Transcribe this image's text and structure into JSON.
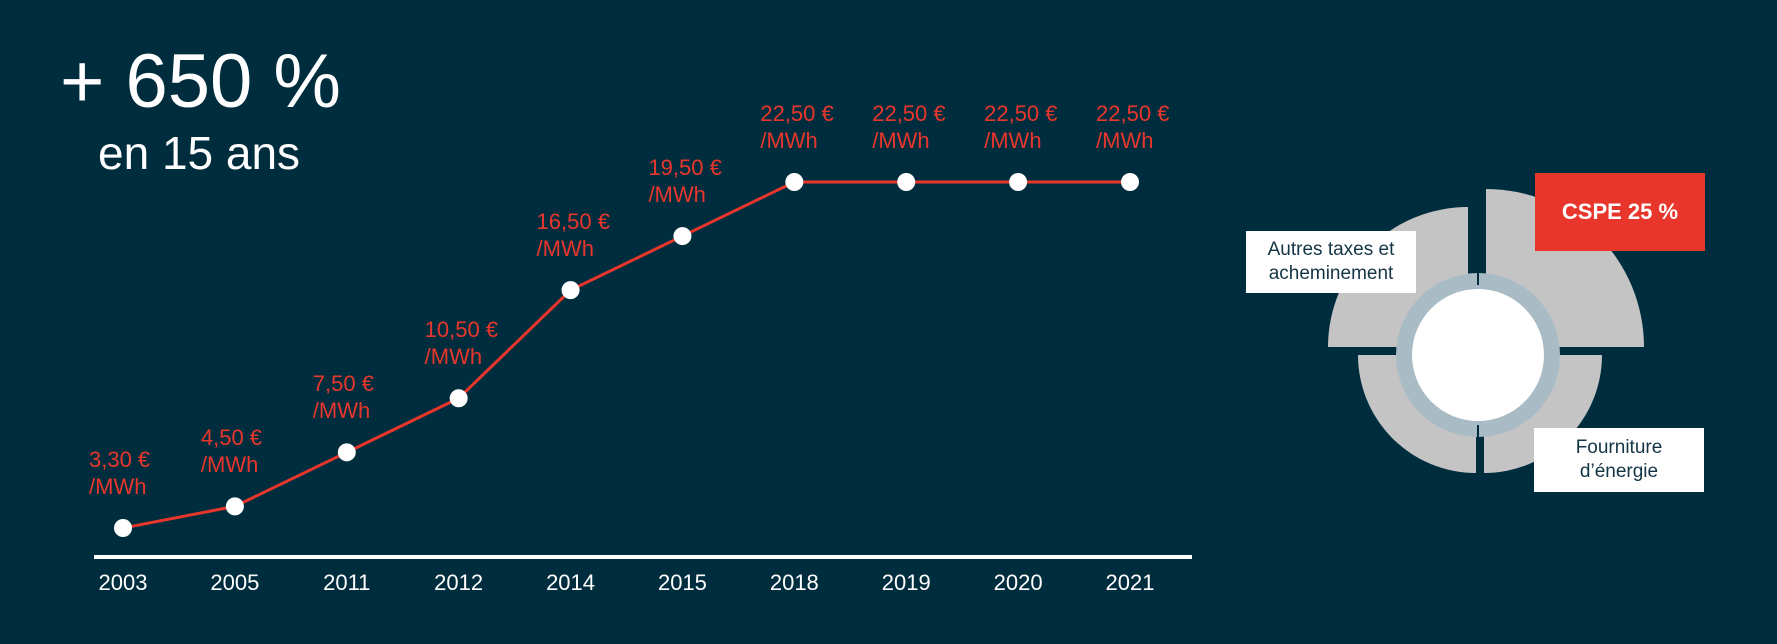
{
  "headline": {
    "big": "+ 650 %",
    "sub": "en 15 ans"
  },
  "colors": {
    "background": "#002d3e",
    "line": "#e8362c",
    "labels": "#e8362c",
    "points": "#ffffff",
    "axis": "#ffffff",
    "pie": "#c4c4c4",
    "pie_accent": "#e8362c"
  },
  "chart_data": [
    {
      "type": "line",
      "title": "",
      "xlabel": "",
      "ylabel": "",
      "categories": [
        "2003",
        "2005",
        "2011",
        "2012",
        "2014",
        "2015",
        "2018",
        "2019",
        "2020",
        "2021"
      ],
      "values": [
        3.3,
        4.5,
        7.5,
        10.5,
        16.5,
        19.5,
        22.5,
        22.5,
        22.5,
        22.5
      ],
      "value_labels": [
        [
          "3,30 €",
          "/MWh"
        ],
        [
          "4,50 €",
          "/MWh"
        ],
        [
          "7,50 €",
          "/MWh"
        ],
        [
          "10,50 €",
          "/MWh"
        ],
        [
          "16,50 €",
          "/MWh"
        ],
        [
          "19,50 €",
          "/MWh"
        ],
        [
          "22,50 €",
          "/MWh"
        ],
        [
          "22,50 €",
          "/MWh"
        ],
        [
          "22,50 €",
          "/MWh"
        ],
        [
          "22,50 €",
          "/MWh"
        ]
      ],
      "grid": false,
      "legend": "none"
    },
    {
      "type": "pie",
      "donut": true,
      "slices": [
        {
          "label": "CSPE 25 %",
          "value": 25
        },
        {
          "label": "Fourniture d’énergie",
          "value": 37.5
        },
        {
          "label": "Autres taxes et acheminement",
          "value": 37.5
        }
      ]
    }
  ]
}
